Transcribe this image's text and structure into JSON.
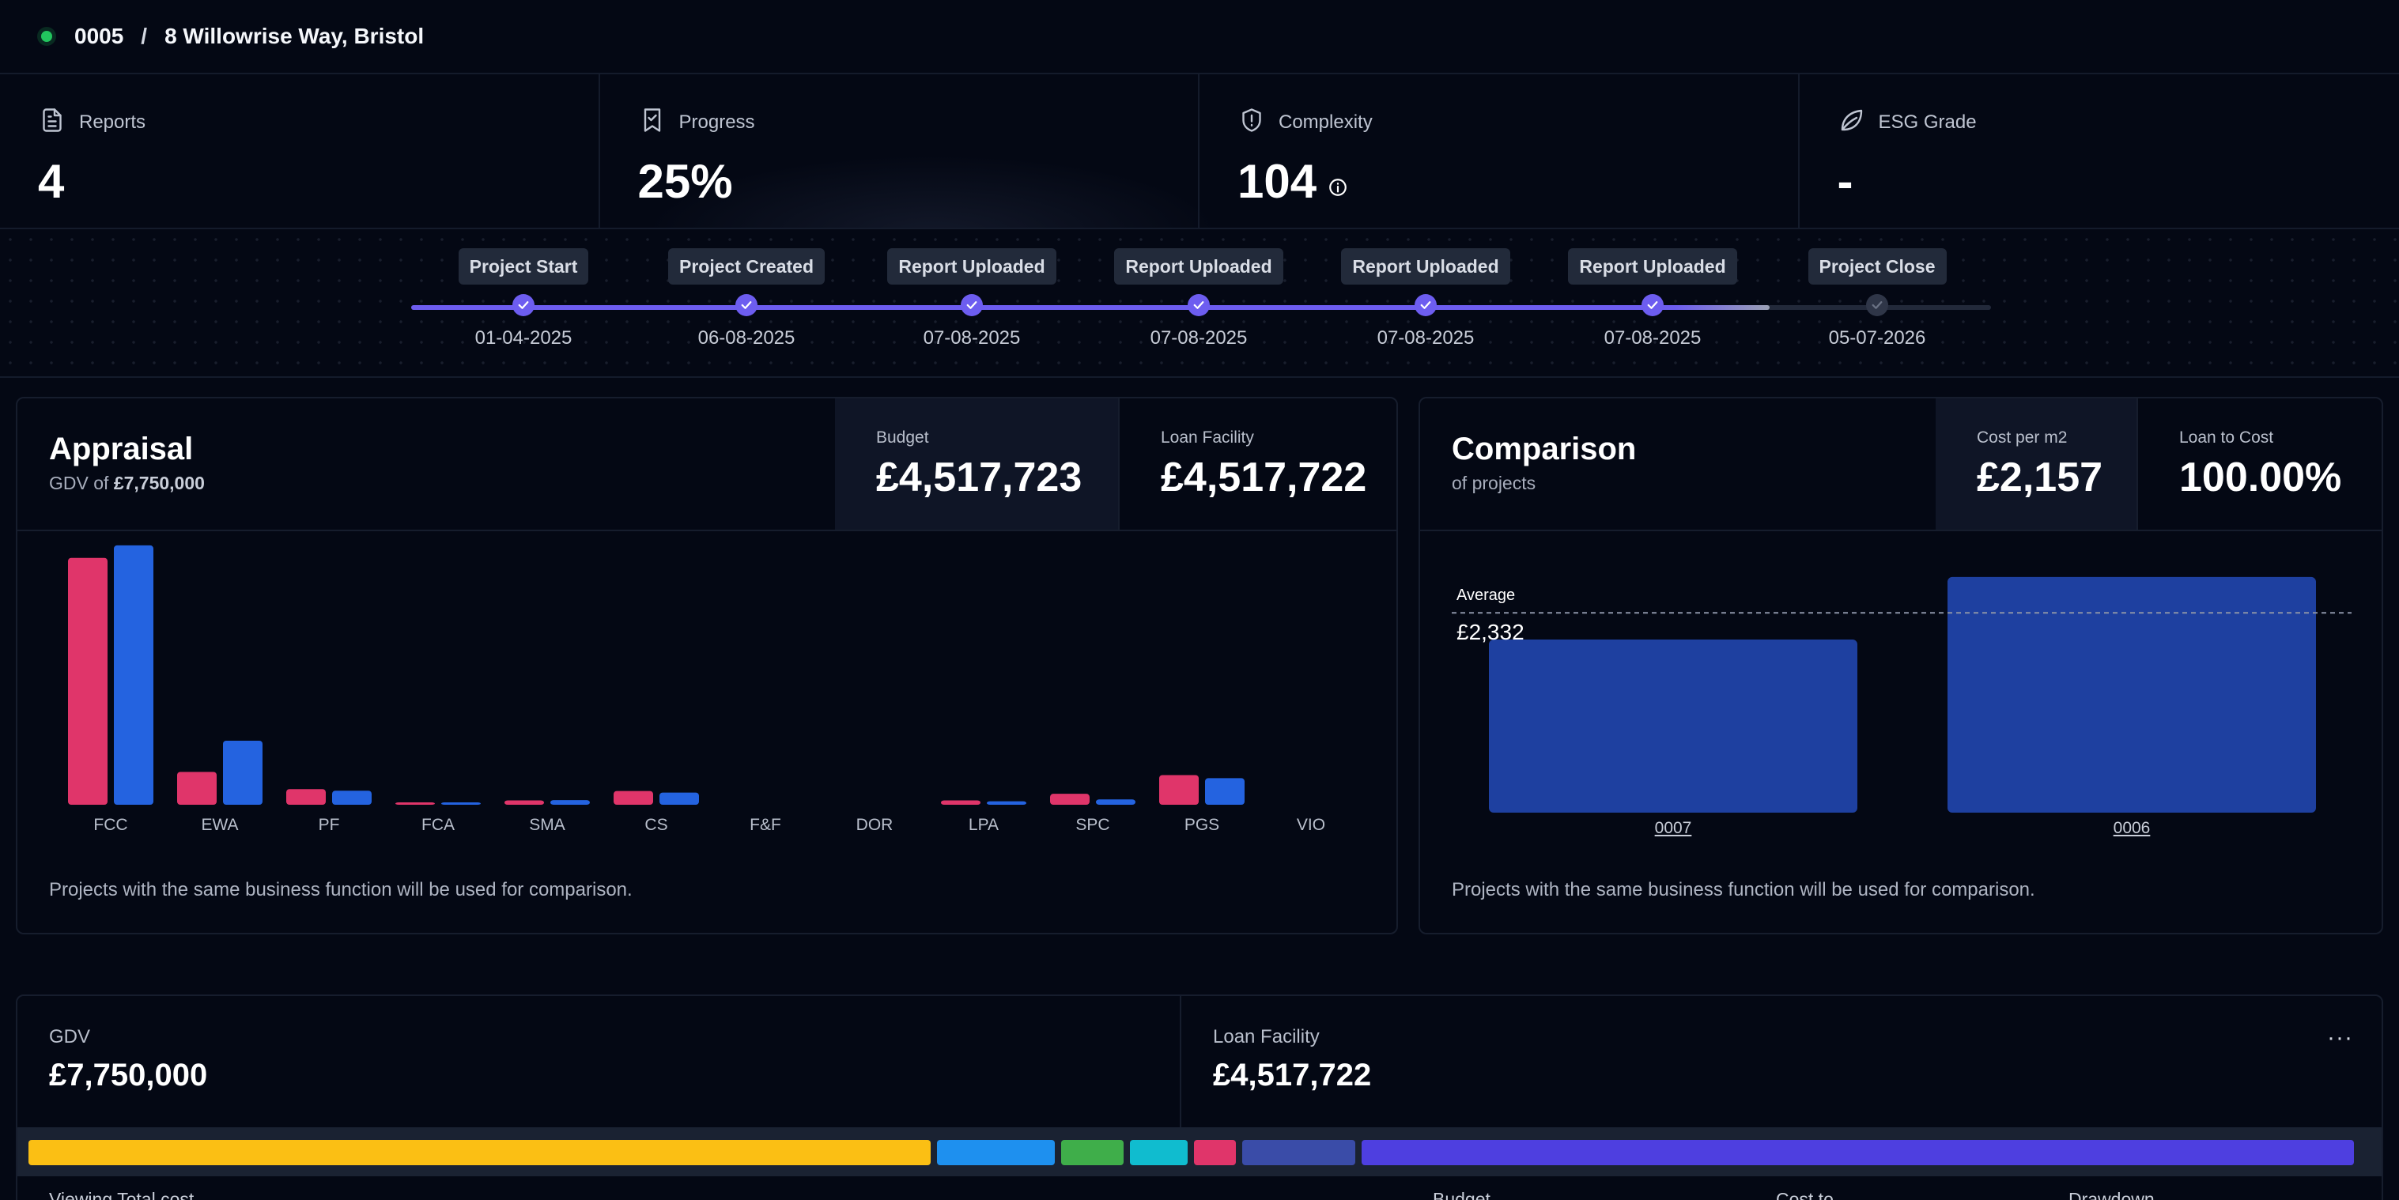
{
  "header": {
    "project_id": "0005",
    "separator": "/",
    "address": "8 Willowrise Way, Bristol",
    "status_color": "#22c55e"
  },
  "stats": [
    {
      "label": "Reports",
      "value": "4",
      "icon": "document-icon"
    },
    {
      "label": "Progress",
      "value": "25%",
      "icon": "bookmark-check-icon"
    },
    {
      "label": "Complexity",
      "value": "104",
      "icon": "shield-icon"
    },
    {
      "label": "ESG Grade",
      "value": "-",
      "icon": "leaf-icon"
    }
  ],
  "timeline": {
    "progress_fraction": 0.86,
    "milestones": [
      {
        "label": "Project Start",
        "date": "01-04-2025",
        "done": true
      },
      {
        "label": "Project Created",
        "date": "06-08-2025",
        "done": true
      },
      {
        "label": "Report Uploaded",
        "date": "07-08-2025",
        "done": true
      },
      {
        "label": "Report Uploaded",
        "date": "07-08-2025",
        "done": true
      },
      {
        "label": "Report Uploaded",
        "date": "07-08-2025",
        "done": true
      },
      {
        "label": "Report Uploaded",
        "date": "07-08-2025",
        "done": true
      },
      {
        "label": "Project Close",
        "date": "05-07-2026",
        "done": false
      }
    ]
  },
  "appraisal": {
    "title": "Appraisal",
    "subtitle_prefix": "GDV of",
    "subtitle_value": "£7,750,000",
    "budget_label": "Budget",
    "budget_value": "£4,517,723",
    "loan_label": "Loan Facility",
    "loan_value": "£4,517,722",
    "footnote": "Projects with the same business function will be used for comparison."
  },
  "comparison": {
    "title": "Comparison",
    "subtitle": "of projects",
    "cost_label": "Cost per m2",
    "cost_value": "£2,157",
    "ltc_label": "Loan to Cost",
    "ltc_value": "100.00%",
    "average_label": "Average",
    "average_value": "£2,332",
    "footnote": "Projects with the same business function will be used for comparison."
  },
  "chart_data": [
    {
      "type": "bar",
      "categories": [
        "FCC",
        "EWA",
        "PF",
        "FCA",
        "SMA",
        "CS",
        "F&F",
        "DOR",
        "LPA",
        "SPC",
        "PGS",
        "VIO"
      ],
      "series": [
        {
          "color": "#e0356a",
          "values": [
            1580,
            210,
            100,
            8,
            28,
            88,
            0,
            0,
            28,
            70,
            190,
            0
          ]
        },
        {
          "color": "#2463e0",
          "values": [
            1660,
            410,
            90,
            12,
            30,
            78,
            0,
            0,
            22,
            34,
            170,
            0
          ]
        }
      ],
      "ylim": [
        0,
        1700
      ]
    },
    {
      "type": "bar",
      "categories": [
        "0007",
        "0006"
      ],
      "values": [
        2020,
        2750
      ],
      "color": "#1e40a0",
      "average": 2332,
      "ylim": [
        0,
        3100
      ]
    }
  ],
  "bottom": {
    "gdv_label": "GDV",
    "gdv_value": "£7,750,000",
    "loan_label": "Loan Facility",
    "loan_value": "£4,517,722",
    "more": "···",
    "segments": [
      {
        "color": "#fbbf14",
        "share": 0.391
      },
      {
        "color": "#1e90ef",
        "share": 0.051
      },
      {
        "color": "#3fae4a",
        "share": 0.027
      },
      {
        "color": "#10bccf",
        "share": 0.025
      },
      {
        "color": "#e0356a",
        "share": 0.018
      },
      {
        "color": "#3a4ca8",
        "share": 0.049
      },
      {
        "color": "#4e3fe0",
        "share": 0.43
      }
    ],
    "hint_left": "Viewing Total cost",
    "hint_col1": "Budget",
    "hint_col2": "Cost to",
    "hint_col3": "Drawdown"
  }
}
